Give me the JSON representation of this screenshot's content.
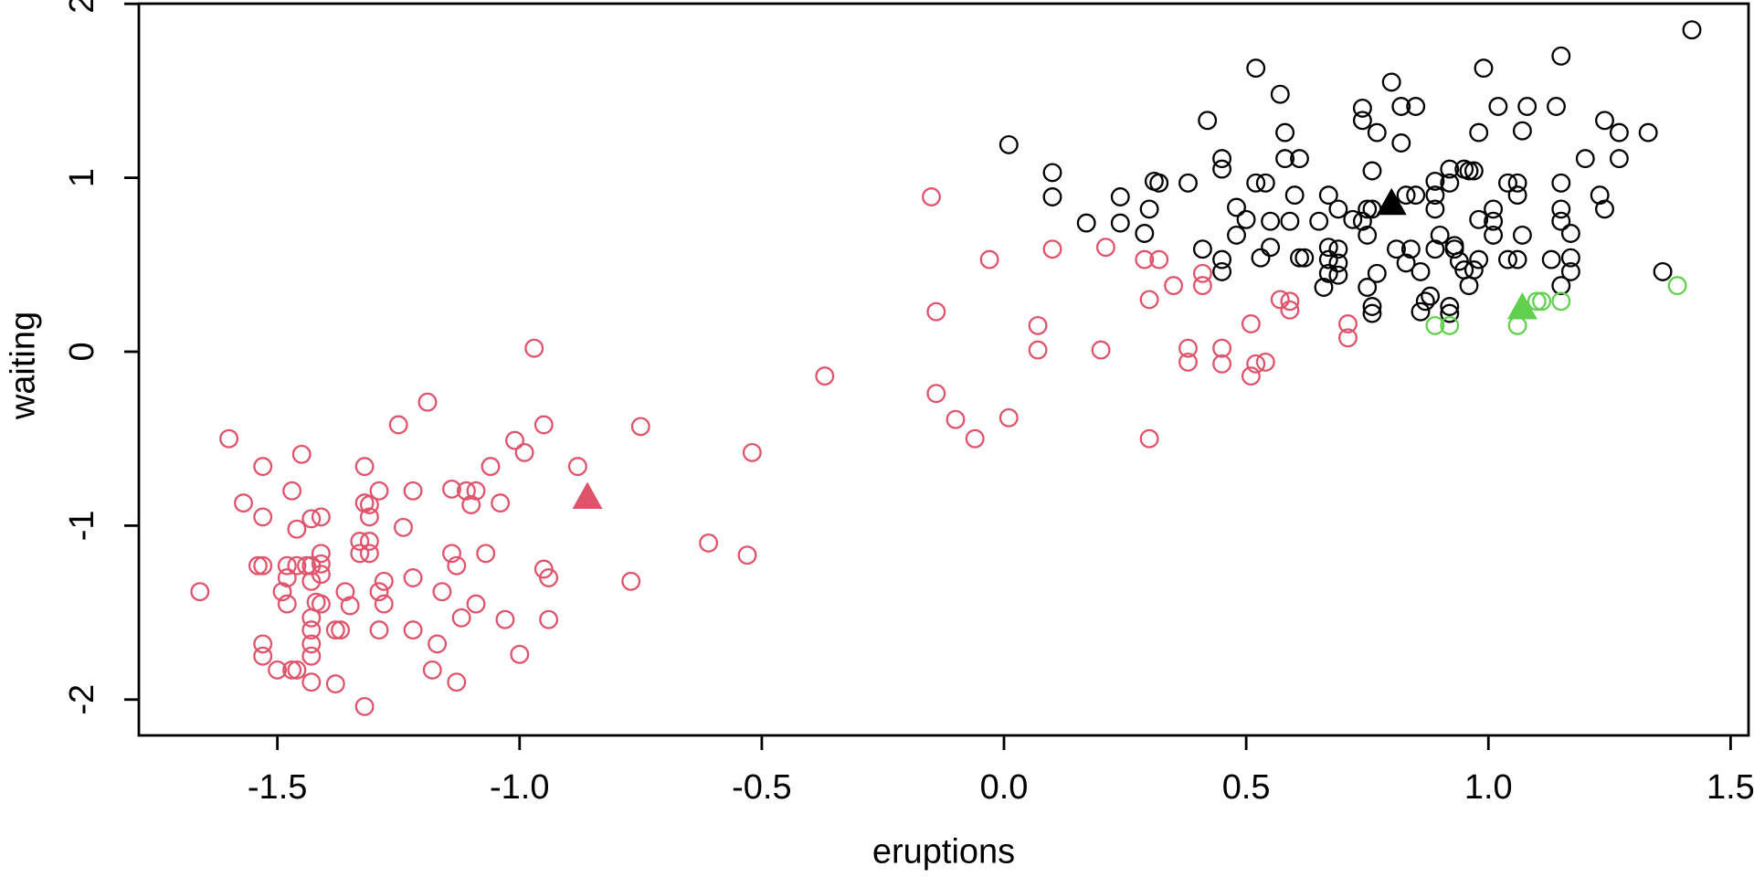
{
  "chart_data": {
    "type": "scatter",
    "title": "",
    "xlabel": "eruptions",
    "ylabel": "waiting",
    "xlim": [
      -1.786,
      1.537
    ],
    "ylim": [
      -2.206,
      2.001
    ],
    "grid": false,
    "legend": "none",
    "x_ticks": {
      "values": [
        -1.5,
        -1.0,
        -0.5,
        0.0,
        0.5,
        1.0,
        1.5
      ],
      "labels": [
        "-1.5",
        "-1.0",
        "-0.5",
        "0.0",
        "0.5",
        "1.0",
        "1.5"
      ]
    },
    "y_ticks": {
      "values": [
        -2,
        -1,
        0,
        1,
        2
      ],
      "labels": [
        "-2",
        "-1",
        "0",
        "1",
        "2"
      ]
    },
    "series": [
      {
        "name": "cluster-red",
        "marker": "open-circle",
        "color": "#DF536B",
        "points": [
          [
            -0.97,
            0.02
          ],
          [
            -1.19,
            -0.29
          ],
          [
            -1.25,
            -0.42
          ],
          [
            -0.95,
            -0.42
          ],
          [
            -1.6,
            -0.5
          ],
          [
            -1.01,
            -0.51
          ],
          [
            -0.99,
            -0.58
          ],
          [
            -1.45,
            -0.59
          ],
          [
            -1.53,
            -0.66
          ],
          [
            -1.32,
            -0.66
          ],
          [
            -1.06,
            -0.66
          ],
          [
            -1.47,
            -0.8
          ],
          [
            -1.29,
            -0.8
          ],
          [
            -1.22,
            -0.8
          ],
          [
            -1.14,
            -0.79
          ],
          [
            -1.11,
            -0.8
          ],
          [
            -1.09,
            -0.8
          ],
          [
            -1.57,
            -0.87
          ],
          [
            -1.32,
            -0.87
          ],
          [
            -1.31,
            -0.88
          ],
          [
            -1.1,
            -0.88
          ],
          [
            -1.04,
            -0.87
          ],
          [
            -1.53,
            -0.95
          ],
          [
            -1.31,
            -0.95
          ],
          [
            -1.43,
            -0.96
          ],
          [
            -1.41,
            -0.95
          ],
          [
            -1.24,
            -1.01
          ],
          [
            -1.46,
            -1.02
          ],
          [
            -1.33,
            -1.09
          ],
          [
            -1.31,
            -1.09
          ],
          [
            -1.33,
            -1.16
          ],
          [
            -1.31,
            -1.16
          ],
          [
            -1.41,
            -1.16
          ],
          [
            -1.14,
            -1.16
          ],
          [
            -1.07,
            -1.16
          ],
          [
            -1.54,
            -1.23
          ],
          [
            -1.53,
            -1.23
          ],
          [
            -1.48,
            -1.23
          ],
          [
            -1.46,
            -1.23
          ],
          [
            -1.44,
            -1.23
          ],
          [
            -1.43,
            -1.23
          ],
          [
            -1.41,
            -1.22
          ],
          [
            -1.41,
            -1.28
          ],
          [
            -1.13,
            -1.23
          ],
          [
            -1.48,
            -1.3
          ],
          [
            -1.43,
            -1.32
          ],
          [
            -1.28,
            -1.32
          ],
          [
            -0.95,
            -1.25
          ],
          [
            -0.94,
            -1.3
          ],
          [
            -1.66,
            -1.38
          ],
          [
            -1.49,
            -1.38
          ],
          [
            -1.36,
            -1.38
          ],
          [
            -1.29,
            -1.38
          ],
          [
            -1.22,
            -1.3
          ],
          [
            -1.16,
            -1.38
          ],
          [
            -1.48,
            -1.45
          ],
          [
            -1.42,
            -1.44
          ],
          [
            -1.41,
            -1.45
          ],
          [
            -1.35,
            -1.46
          ],
          [
            -1.28,
            -1.45
          ],
          [
            -1.09,
            -1.45
          ],
          [
            -1.12,
            -1.53
          ],
          [
            -1.43,
            -1.53
          ],
          [
            -1.03,
            -1.54
          ],
          [
            -0.94,
            -1.54
          ],
          [
            -1.43,
            -1.6
          ],
          [
            -1.38,
            -1.6
          ],
          [
            -1.37,
            -1.6
          ],
          [
            -1.29,
            -1.6
          ],
          [
            -1.22,
            -1.6
          ],
          [
            -1.43,
            -1.68
          ],
          [
            -1.53,
            -1.68
          ],
          [
            -1.17,
            -1.68
          ],
          [
            -1.53,
            -1.75
          ],
          [
            -1.43,
            -1.75
          ],
          [
            -1.0,
            -1.74
          ],
          [
            -1.5,
            -1.83
          ],
          [
            -1.47,
            -1.83
          ],
          [
            -1.46,
            -1.83
          ],
          [
            -1.18,
            -1.83
          ],
          [
            -1.43,
            -1.9
          ],
          [
            -1.38,
            -1.91
          ],
          [
            -1.13,
            -1.9
          ],
          [
            -1.32,
            -2.04
          ],
          [
            -0.37,
            -0.14
          ],
          [
            -0.14,
            0.23
          ],
          [
            -0.14,
            -0.24
          ],
          [
            -0.75,
            -0.43
          ],
          [
            -0.52,
            -0.58
          ],
          [
            -0.88,
            -0.66
          ],
          [
            -0.61,
            -1.1
          ],
          [
            -0.53,
            -1.17
          ],
          [
            -0.77,
            -1.32
          ],
          [
            -0.15,
            0.89
          ],
          [
            0.1,
            0.59
          ],
          [
            0.21,
            0.6
          ],
          [
            -0.03,
            0.53
          ],
          [
            0.07,
            0.15
          ],
          [
            0.07,
            0.01
          ],
          [
            0.2,
            0.01
          ],
          [
            -0.1,
            -0.39
          ],
          [
            0.01,
            -0.38
          ],
          [
            -0.06,
            -0.5
          ],
          [
            0.3,
            -0.5
          ],
          [
            0.29,
            0.53
          ],
          [
            0.32,
            0.53
          ],
          [
            0.35,
            0.38
          ],
          [
            0.41,
            0.45
          ],
          [
            0.41,
            0.38
          ],
          [
            0.3,
            0.3
          ],
          [
            0.38,
            0.02
          ],
          [
            0.38,
            -0.06
          ],
          [
            0.45,
            0.02
          ],
          [
            0.45,
            -0.07
          ],
          [
            0.51,
            0.16
          ],
          [
            0.51,
            -0.14
          ],
          [
            0.52,
            -0.07
          ],
          [
            0.54,
            -0.06
          ],
          [
            0.57,
            0.3
          ],
          [
            0.59,
            0.29
          ],
          [
            0.59,
            0.24
          ],
          [
            0.71,
            0.16
          ],
          [
            0.71,
            0.08
          ]
        ]
      },
      {
        "name": "cluster-black",
        "marker": "open-circle",
        "color": "#000000",
        "points": [
          [
            0.01,
            1.19
          ],
          [
            0.1,
            1.03
          ],
          [
            0.1,
            0.89
          ],
          [
            0.24,
            0.89
          ],
          [
            0.3,
            0.82
          ],
          [
            0.17,
            0.74
          ],
          [
            0.24,
            0.74
          ],
          [
            0.29,
            0.68
          ],
          [
            0.31,
            0.98
          ],
          [
            0.52,
            1.63
          ],
          [
            0.57,
            1.48
          ],
          [
            0.42,
            1.33
          ],
          [
            0.8,
            1.55
          ],
          [
            0.74,
            1.4
          ],
          [
            0.82,
            1.41
          ],
          [
            0.85,
            1.41
          ],
          [
            0.74,
            1.33
          ],
          [
            0.77,
            1.26
          ],
          [
            0.58,
            1.26
          ],
          [
            0.82,
            1.2
          ],
          [
            0.45,
            1.11
          ],
          [
            0.45,
            1.05
          ],
          [
            0.58,
            1.11
          ],
          [
            0.61,
            1.11
          ],
          [
            0.32,
            0.97
          ],
          [
            0.38,
            0.97
          ],
          [
            0.52,
            0.97
          ],
          [
            0.54,
            0.97
          ],
          [
            0.76,
            1.04
          ],
          [
            0.92,
            1.05
          ],
          [
            0.95,
            1.05
          ],
          [
            0.89,
            0.98
          ],
          [
            0.92,
            0.97
          ],
          [
            0.6,
            0.9
          ],
          [
            0.67,
            0.9
          ],
          [
            0.69,
            0.82
          ],
          [
            0.48,
            0.83
          ],
          [
            0.5,
            0.76
          ],
          [
            0.55,
            0.75
          ],
          [
            0.59,
            0.75
          ],
          [
            0.65,
            0.75
          ],
          [
            0.48,
            0.67
          ],
          [
            0.72,
            0.76
          ],
          [
            0.74,
            0.75
          ],
          [
            0.75,
            0.82
          ],
          [
            0.76,
            0.82
          ],
          [
            0.83,
            0.9
          ],
          [
            0.85,
            0.9
          ],
          [
            0.89,
            0.9
          ],
          [
            0.89,
            0.82
          ],
          [
            0.75,
            0.67
          ],
          [
            0.9,
            0.67
          ],
          [
            0.41,
            0.59
          ],
          [
            0.45,
            0.53
          ],
          [
            0.45,
            0.46
          ],
          [
            0.55,
            0.6
          ],
          [
            0.53,
            0.54
          ],
          [
            0.61,
            0.54
          ],
          [
            0.62,
            0.54
          ],
          [
            0.67,
            0.6
          ],
          [
            0.69,
            0.59
          ],
          [
            0.67,
            0.53
          ],
          [
            0.69,
            0.51
          ],
          [
            0.67,
            0.45
          ],
          [
            0.69,
            0.44
          ],
          [
            0.81,
            0.59
          ],
          [
            0.84,
            0.59
          ],
          [
            0.83,
            0.51
          ],
          [
            0.86,
            0.46
          ],
          [
            0.77,
            0.45
          ],
          [
            0.75,
            0.37
          ],
          [
            0.66,
            0.37
          ],
          [
            0.89,
            0.59
          ],
          [
            0.93,
            0.59
          ],
          [
            0.88,
            0.32
          ],
          [
            0.92,
            0.26
          ],
          [
            0.76,
            0.26
          ],
          [
            1.42,
            1.85
          ],
          [
            1.15,
            1.7
          ],
          [
            0.99,
            1.63
          ],
          [
            1.02,
            1.41
          ],
          [
            1.08,
            1.41
          ],
          [
            1.14,
            1.41
          ],
          [
            0.98,
            1.26
          ],
          [
            1.07,
            1.27
          ],
          [
            1.24,
            1.33
          ],
          [
            1.27,
            1.26
          ],
          [
            1.33,
            1.26
          ],
          [
            1.2,
            1.11
          ],
          [
            1.27,
            1.11
          ],
          [
            0.96,
            1.04
          ],
          [
            0.97,
            1.04
          ],
          [
            1.04,
            0.97
          ],
          [
            1.06,
            0.97
          ],
          [
            1.06,
            0.9
          ],
          [
            1.15,
            0.97
          ],
          [
            1.23,
            0.9
          ],
          [
            1.24,
            0.82
          ],
          [
            1.15,
            0.82
          ],
          [
            1.15,
            0.75
          ],
          [
            1.01,
            0.82
          ],
          [
            1.01,
            0.75
          ],
          [
            1.01,
            0.67
          ],
          [
            1.07,
            0.67
          ],
          [
            1.17,
            0.68
          ],
          [
            0.98,
            0.76
          ],
          [
            0.94,
            0.52
          ],
          [
            0.98,
            0.53
          ],
          [
            0.95,
            0.47
          ],
          [
            0.97,
            0.47
          ],
          [
            0.96,
            0.38
          ],
          [
            1.04,
            0.53
          ],
          [
            1.06,
            0.53
          ],
          [
            1.13,
            0.53
          ],
          [
            1.17,
            0.54
          ],
          [
            1.17,
            0.46
          ],
          [
            1.15,
            0.38
          ],
          [
            1.36,
            0.46
          ],
          [
            0.93,
            0.61
          ],
          [
            0.76,
            0.22
          ],
          [
            0.86,
            0.23
          ],
          [
            0.87,
            0.29
          ],
          [
            0.92,
            0.22
          ]
        ]
      },
      {
        "name": "cluster-green",
        "marker": "open-circle",
        "color": "#61D04F",
        "points": [
          [
            1.39,
            0.38
          ],
          [
            1.1,
            0.29
          ],
          [
            1.11,
            0.29
          ],
          [
            1.15,
            0.29
          ],
          [
            1.06,
            0.15
          ],
          [
            0.89,
            0.15
          ],
          [
            0.92,
            0.15
          ]
        ]
      }
    ],
    "cluster_centers": [
      {
        "name": "center-red",
        "marker": "filled-triangle",
        "color": "#DF536B",
        "x": -0.86,
        "y": -0.83
      },
      {
        "name": "center-black",
        "marker": "filled-triangle",
        "color": "#000000",
        "x": 0.8,
        "y": 0.86
      },
      {
        "name": "center-green",
        "marker": "filled-triangle",
        "color": "#61D04F",
        "x": 1.07,
        "y": 0.26
      }
    ]
  }
}
